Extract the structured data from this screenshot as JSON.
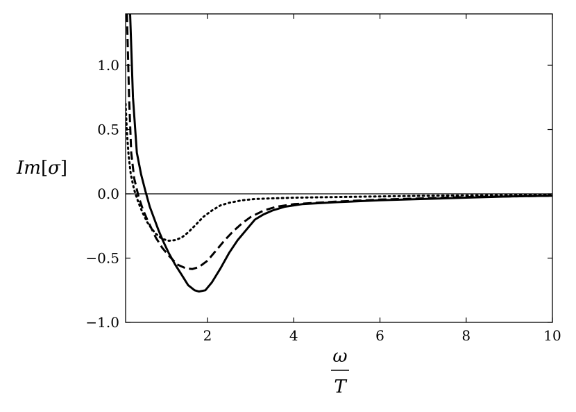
{
  "chart_data": {
    "type": "line",
    "title": "",
    "xlabel": {
      "numerator": "ω",
      "denominator": "T"
    },
    "ylabel": {
      "prefix": "Im",
      "open": "[",
      "symbol": "σ",
      "close": "]"
    },
    "xlim": [
      0.1,
      10
    ],
    "ylim": [
      -1.0,
      1.4
    ],
    "xticks": [
      {
        "value": 2,
        "label": "2"
      },
      {
        "value": 4,
        "label": "4"
      },
      {
        "value": 6,
        "label": "6"
      },
      {
        "value": 8,
        "label": "8"
      },
      {
        "value": 10,
        "label": "10"
      }
    ],
    "yticks": [
      {
        "value": -1.0,
        "label": "−1.0"
      },
      {
        "value": -0.5,
        "label": "−0.5"
      },
      {
        "value": 0.0,
        "label": "0.0"
      },
      {
        "value": 0.5,
        "label": "0.5"
      },
      {
        "value": 1.0,
        "label": "1.0"
      }
    ],
    "grid": false,
    "hline": 0.0,
    "series": [
      {
        "style": "solid",
        "x": [
          0.2,
          0.27,
          0.36,
          0.46,
          0.56,
          0.66,
          0.76,
          0.86,
          0.96,
          1.1,
          1.25,
          1.4,
          1.55,
          1.7,
          1.8,
          1.95,
          2.1,
          2.3,
          2.5,
          2.7,
          2.9,
          3.1,
          3.3,
          3.5,
          3.8,
          4.2,
          5.0,
          6.0,
          7.0,
          8.0,
          9.0,
          10.0
        ],
        "y": [
          1.45,
          0.75,
          0.32,
          0.15,
          0.02,
          -0.1,
          -0.19,
          -0.28,
          -0.36,
          -0.46,
          -0.55,
          -0.63,
          -0.71,
          -0.75,
          -0.76,
          -0.75,
          -0.69,
          -0.58,
          -0.46,
          -0.36,
          -0.28,
          -0.2,
          -0.16,
          -0.13,
          -0.1,
          -0.08,
          -0.065,
          -0.05,
          -0.04,
          -0.03,
          -0.02,
          -0.015
        ]
      },
      {
        "style": "dashed",
        "x": [
          0.13,
          0.18,
          0.23,
          0.3,
          0.4,
          0.5,
          0.6,
          0.7,
          0.8,
          0.95,
          1.1,
          1.3,
          1.5,
          1.65,
          1.8,
          2.0,
          2.2,
          2.4,
          2.6,
          2.8,
          3.0,
          3.3,
          3.6,
          4.0,
          5.0,
          6.0,
          7.0,
          8.0,
          9.0,
          10.0
        ],
        "y": [
          1.4,
          0.75,
          0.32,
          0.12,
          -0.02,
          -0.12,
          -0.2,
          -0.27,
          -0.34,
          -0.42,
          -0.48,
          -0.55,
          -0.58,
          -0.585,
          -0.57,
          -0.52,
          -0.44,
          -0.36,
          -0.29,
          -0.23,
          -0.18,
          -0.13,
          -0.1,
          -0.08,
          -0.06,
          -0.045,
          -0.035,
          -0.025,
          -0.02,
          -0.015
        ]
      },
      {
        "style": "dotted",
        "x": [
          0.1,
          0.13,
          0.17,
          0.22,
          0.3,
          0.4,
          0.5,
          0.6,
          0.7,
          0.8,
          0.95,
          1.1,
          1.25,
          1.4,
          1.55,
          1.7,
          1.9,
          2.1,
          2.3,
          2.5,
          2.8,
          3.1,
          3.5,
          4.0,
          5.0,
          6.0,
          7.0,
          8.0,
          9.0,
          10.0
        ],
        "y": [
          0.7,
          0.48,
          0.3,
          0.15,
          0.03,
          -0.07,
          -0.15,
          -0.22,
          -0.27,
          -0.31,
          -0.35,
          -0.365,
          -0.36,
          -0.34,
          -0.3,
          -0.25,
          -0.18,
          -0.13,
          -0.09,
          -0.07,
          -0.05,
          -0.04,
          -0.035,
          -0.03,
          -0.025,
          -0.02,
          -0.015,
          -0.012,
          -0.01,
          -0.008
        ]
      }
    ]
  }
}
